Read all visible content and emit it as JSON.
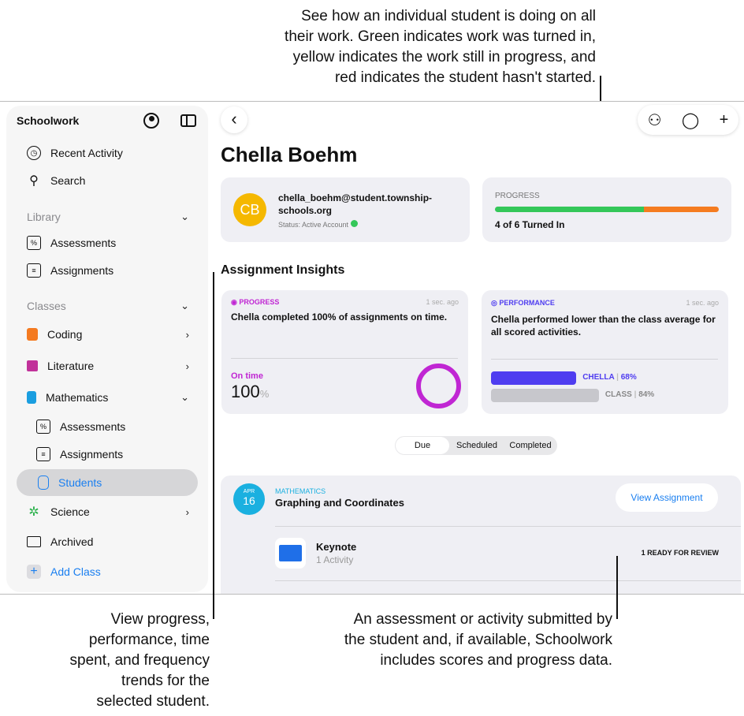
{
  "callouts": {
    "top": [
      "See how an individual student is doing on all",
      "their work. Green indicates work was turned in,",
      "yellow indicates the work still in progress, and",
      "red indicates the student hasn't started."
    ],
    "bottom_left": [
      "View progress,",
      "performance, time",
      "spent, and frequency",
      "trends for the",
      "selected student."
    ],
    "bottom_right": [
      "An assessment or activity submitted by",
      "the student and, if available, Schoolwork",
      "includes scores and progress data."
    ]
  },
  "sidebar": {
    "title": "Schoolwork",
    "items": [
      {
        "label": "Recent Activity",
        "icon": "clock-icon"
      },
      {
        "label": "Search",
        "icon": "search-icon"
      }
    ],
    "library": {
      "label": "Library",
      "items": [
        "Assessments",
        "Assignments"
      ]
    },
    "classes": {
      "label": "Classes",
      "items": [
        {
          "label": "Coding",
          "color": "#f47a20"
        },
        {
          "label": "Literature",
          "color": "#c1329a"
        },
        {
          "label": "Mathematics",
          "color": "#1a9ee0"
        }
      ],
      "math_sub": [
        "Assessments",
        "Assignments",
        "Students"
      ],
      "science": {
        "label": "Science",
        "color": "#2bb24c"
      }
    },
    "archived": "Archived",
    "add_class": "Add Class"
  },
  "student": {
    "name": "Chella Boehm",
    "initials": "CB",
    "email_line1": "chella_boehm@student.township-",
    "email_line2": "schools.org",
    "status": "Status: Active Account"
  },
  "progress": {
    "label": "PROGRESS",
    "turned_in": 4,
    "total": 6,
    "text": "4 of 6 Turned In",
    "colors": {
      "done": "#34c759",
      "rest": "#f57c20"
    }
  },
  "insights": {
    "heading": "Assignment Insights",
    "progress_card": {
      "tag": "PROGRESS",
      "time": "1 sec. ago",
      "text": "Chella completed 100% of assignments on time.",
      "metric_label": "On time",
      "value": "100",
      "unit": "%",
      "color": "#c026d3"
    },
    "performance_card": {
      "tag": "PERFORMANCE",
      "time": "1 sec. ago",
      "line1": "Chella performed lower than the class average for",
      "line2": "all scored activities.",
      "student_label": "CHELLA",
      "student_value": "68%",
      "class_label": "CLASS",
      "class_value": "84%",
      "student_pct": 68,
      "class_pct": 84,
      "color": "#4f3df0"
    }
  },
  "tabs": [
    "Due",
    "Scheduled",
    "Completed"
  ],
  "assignment": {
    "month": "APR",
    "day": "16",
    "subject": "MATHEMATICS",
    "title": "Graphing and Coordinates",
    "button": "View Assignment",
    "activity": {
      "name": "Keynote",
      "count": "1 Activity",
      "status": "1 READY FOR REVIEW"
    }
  }
}
